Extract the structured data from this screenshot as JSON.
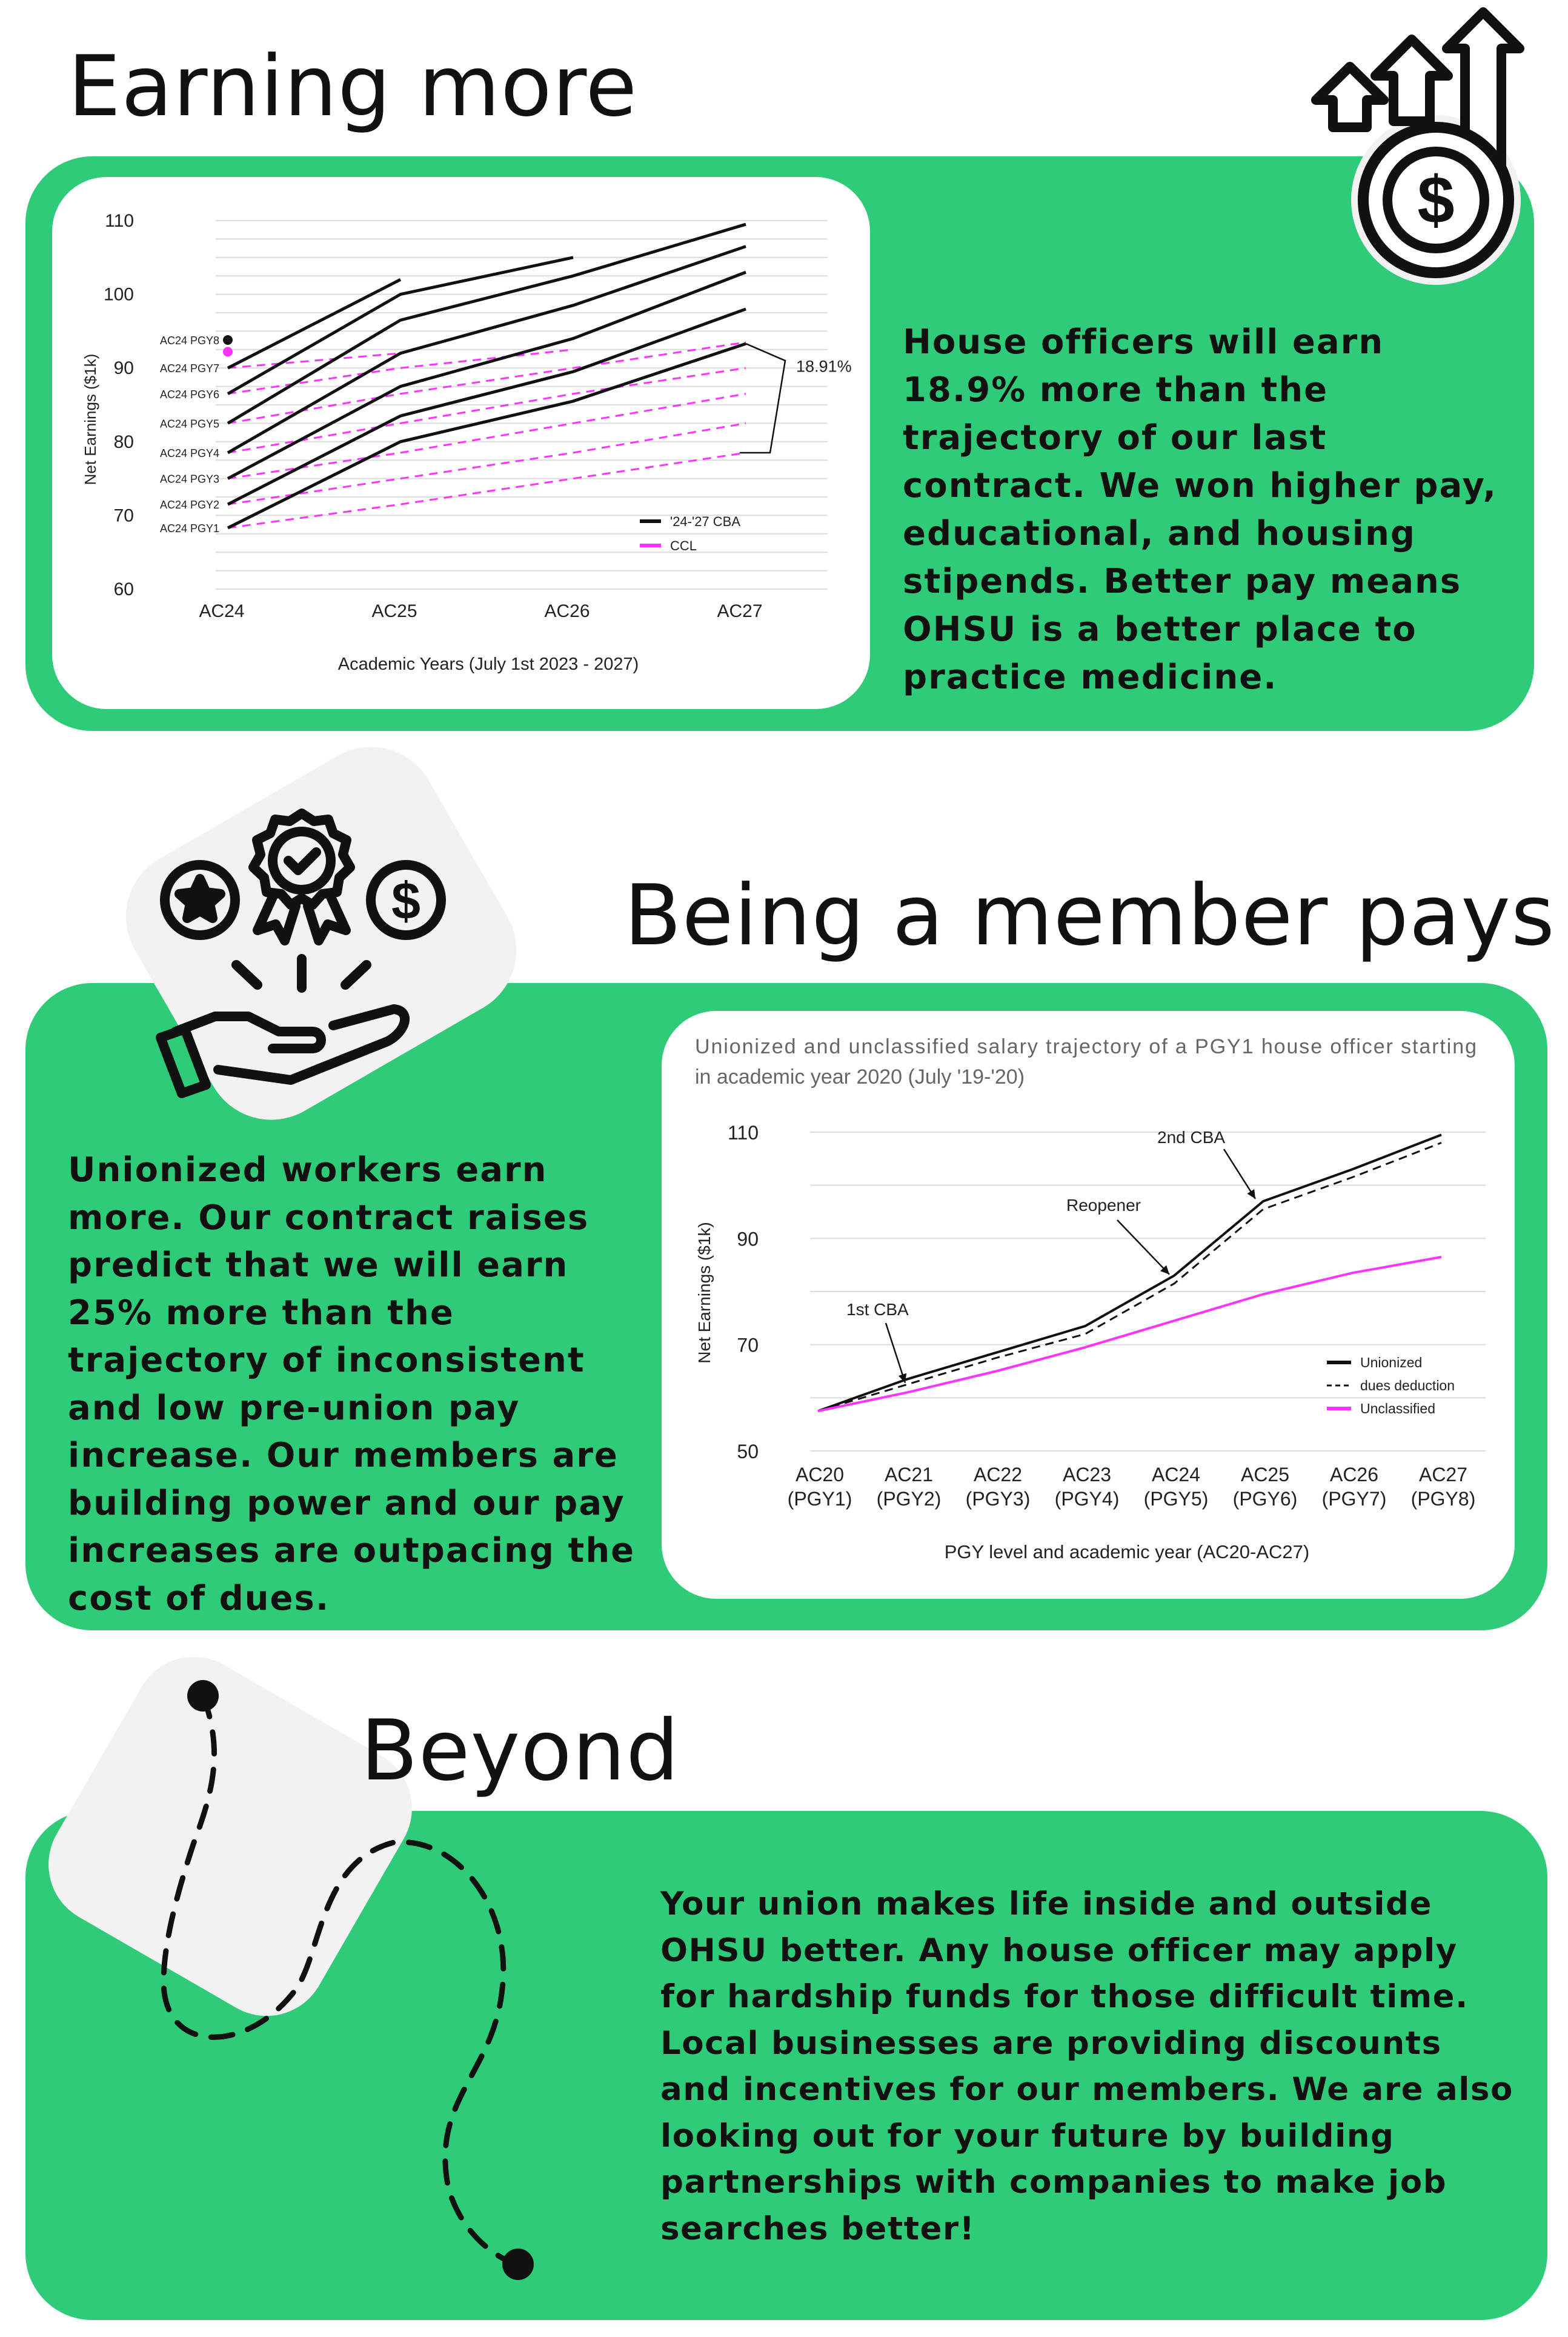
{
  "section1": {
    "heading": "Earning more",
    "paragraph": "House officers will earn 18.9% more than the trajectory of our last contract. We won higher pay, educational, and housing stipends. Better pay means OHSU is a better place to practice medicine."
  },
  "section2": {
    "heading": "Being a member pays",
    "paragraph": "Unionized workers earn more. Our contract raises predict that we will earn 25% more than the trajectory of inconsistent and low pre-union pay increase. Our members are building power and our pay increases are outpacing the cost of dues."
  },
  "section3": {
    "heading": "Beyond",
    "paragraph": "Your union makes life inside and outside OHSU better. Any house officer may apply for hardship funds for those difficult time. Local businesses are providing discounts and incentives for our members. We are also looking out for your future by building partnerships with companies to make job searches better!"
  },
  "colors": {
    "green": "#2ecc78",
    "magenta": "#ff33ff",
    "black": "#111111",
    "grey_blob": "#f2f2f2"
  },
  "icons": [
    "dollar-growth-arrows-icon",
    "rewards-hand-icon",
    "dashed-path-icon"
  ],
  "chart_data": [
    {
      "type": "line",
      "title": "",
      "xlabel": "Academic Years (July 1st 2023 - 2027)",
      "ylabel": "Net Earnings ($1k)",
      "categories": [
        "AC24",
        "AC25",
        "AC26",
        "AC27"
      ],
      "ylim": [
        60,
        110
      ],
      "yticks": [
        60,
        70,
        80,
        90,
        100,
        110
      ],
      "grid": true,
      "legend": {
        "position": "bottom-right",
        "entries": [
          "'24-'27 CBA",
          "CCL"
        ]
      },
      "annotation": "18.91%",
      "row_labels": [
        "AC24 PGY1",
        "AC24 PGY2",
        "AC24 PGY3",
        "AC24 PGY4",
        "AC24 PGY5",
        "AC24 PGY6",
        "AC24 PGY7",
        "AC24 PGY8"
      ],
      "series": [
        {
          "name": "'24-'27 CBA",
          "style": "solid",
          "lines": [
            [
              68.3,
              80.0,
              85.5,
              93.3
            ],
            [
              71.5,
              83.5,
              89.5,
              98.0
            ],
            [
              75.0,
              87.5,
              94.0,
              103.0
            ],
            [
              78.5,
              92.0,
              98.5,
              106.5
            ],
            [
              82.5,
              96.5,
              102.5,
              109.5
            ],
            [
              86.5,
              100.0,
              105.0,
              null
            ],
            [
              90.0,
              102.0,
              null,
              null
            ]
          ]
        },
        {
          "name": "CCL",
          "style": "dashed",
          "lines": [
            [
              68.3,
              71.5,
              75.0,
              78.5
            ],
            [
              71.5,
              75.0,
              78.5,
              82.5
            ],
            [
              75.0,
              78.5,
              82.5,
              86.5
            ],
            [
              78.5,
              82.5,
              86.5,
              90.0
            ],
            [
              82.5,
              86.5,
              90.0,
              93.5
            ],
            [
              86.5,
              90.0,
              92.5,
              null
            ],
            [
              90.0,
              92.0,
              null,
              null
            ]
          ]
        }
      ],
      "points": [
        {
          "label": "AC24 PGY8",
          "x": "AC24",
          "y": 93.8,
          "color": "black"
        },
        {
          "label": "AC24 PGY8",
          "x": "AC24",
          "y": 92.2,
          "color": "magenta"
        }
      ]
    },
    {
      "type": "line",
      "title": "Unionized and unclassified salary trajectory of a PGY1 house officer starting in academic year 2020 (July '19-'20)",
      "xlabel": "PGY level and academic year (AC20-AC27)",
      "ylabel": "Net Earnings ($1k)",
      "categories": [
        "AC20 (PGY1)",
        "AC21 (PGY2)",
        "AC22 (PGY3)",
        "AC23 (PGY4)",
        "AC24 (PGY5)",
        "AC25 (PGY6)",
        "AC26 (PGY7)",
        "AC27 (PGY8)"
      ],
      "ylim": [
        50,
        110
      ],
      "yticks": [
        50,
        70,
        90,
        110
      ],
      "grid": true,
      "legend": {
        "position": "bottom-right",
        "entries": [
          "Unionized",
          "dues deduction",
          "Unclassified"
        ]
      },
      "annotations": [
        "1st CBA",
        "Reopener",
        "2nd CBA"
      ],
      "series": [
        {
          "name": "Unionized",
          "style": "solid",
          "values": [
            57.5,
            63.5,
            68.5,
            73.5,
            83.0,
            97.0,
            103.0,
            109.5
          ]
        },
        {
          "name": "dues deduction",
          "style": "dashed",
          "values": [
            57.5,
            62.5,
            67.5,
            72.0,
            81.5,
            95.5,
            101.5,
            108.0
          ]
        },
        {
          "name": "Unclassified",
          "style": "solid",
          "values": [
            57.5,
            61.0,
            65.0,
            69.5,
            74.5,
            79.5,
            83.5,
            86.5
          ]
        }
      ]
    }
  ]
}
